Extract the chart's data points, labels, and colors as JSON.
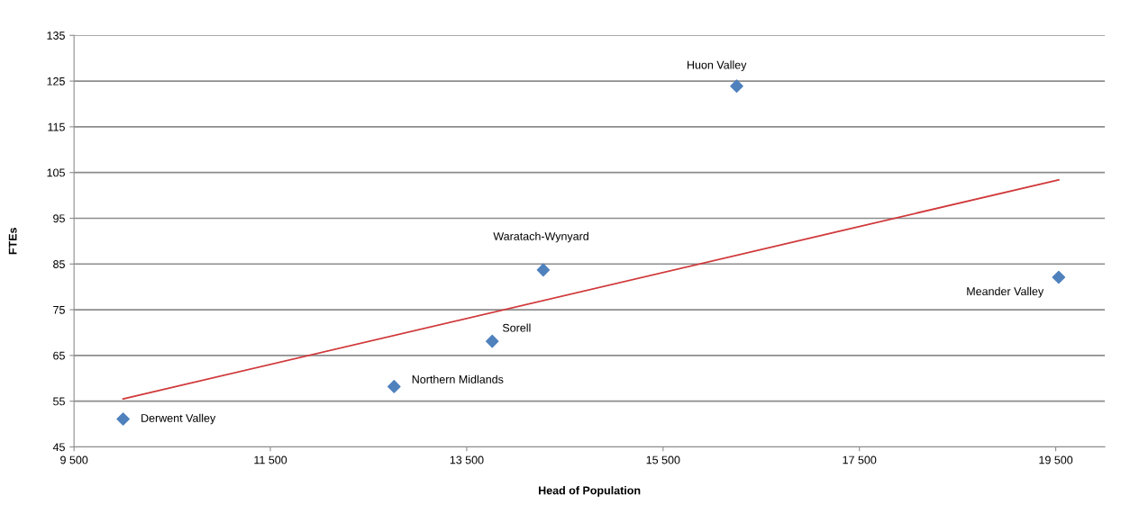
{
  "chart_data": {
    "type": "scatter",
    "xlabel": "Head of Population",
    "ylabel": "FTEs",
    "x": [
      10000,
      12760,
      13760,
      14280,
      16250,
      19530
    ],
    "series": [
      {
        "color": "#4f81bd",
        "values": [
          51.1,
          58.2,
          68.1,
          83.7,
          123.9,
          82.1
        ],
        "marker": "diamond"
      },
      {
        "type": "line",
        "color": "#d0393b",
        "x": [
          10000,
          19530
        ],
        "values": [
          55.5,
          103.4
        ],
        "marker": "none"
      }
    ],
    "annotations": [
      {
        "text": "Derwent Valley",
        "x": 10000,
        "y": 51.1
      },
      {
        "text": "Northern Midlands",
        "x": 12760,
        "y": 58.2
      },
      {
        "text": "Sorell",
        "x": 13760,
        "y": 68.1
      },
      {
        "text": "Waratach-Wynyard",
        "x": 14280,
        "y": 83.7
      },
      {
        "text": "Huon Valley",
        "x": 16250,
        "y": 123.9
      },
      {
        "text": "Meander Valley",
        "x": 19530,
        "y": 82.1
      }
    ],
    "xlim": [
      9500,
      20000
    ],
    "xticks": [
      {
        "value": 9500,
        "label": "9 500"
      },
      {
        "value": 11500,
        "label": "11 500"
      },
      {
        "value": 13500,
        "label": "13 500"
      },
      {
        "value": 15500,
        "label": "15 500"
      },
      {
        "value": 17500,
        "label": "17 500"
      },
      {
        "value": 19500,
        "label": "19 500"
      }
    ],
    "ylim": [
      45,
      135
    ],
    "yticks": [
      45,
      55,
      65,
      75,
      85,
      95,
      105,
      115,
      125,
      135
    ],
    "grid": "y"
  }
}
